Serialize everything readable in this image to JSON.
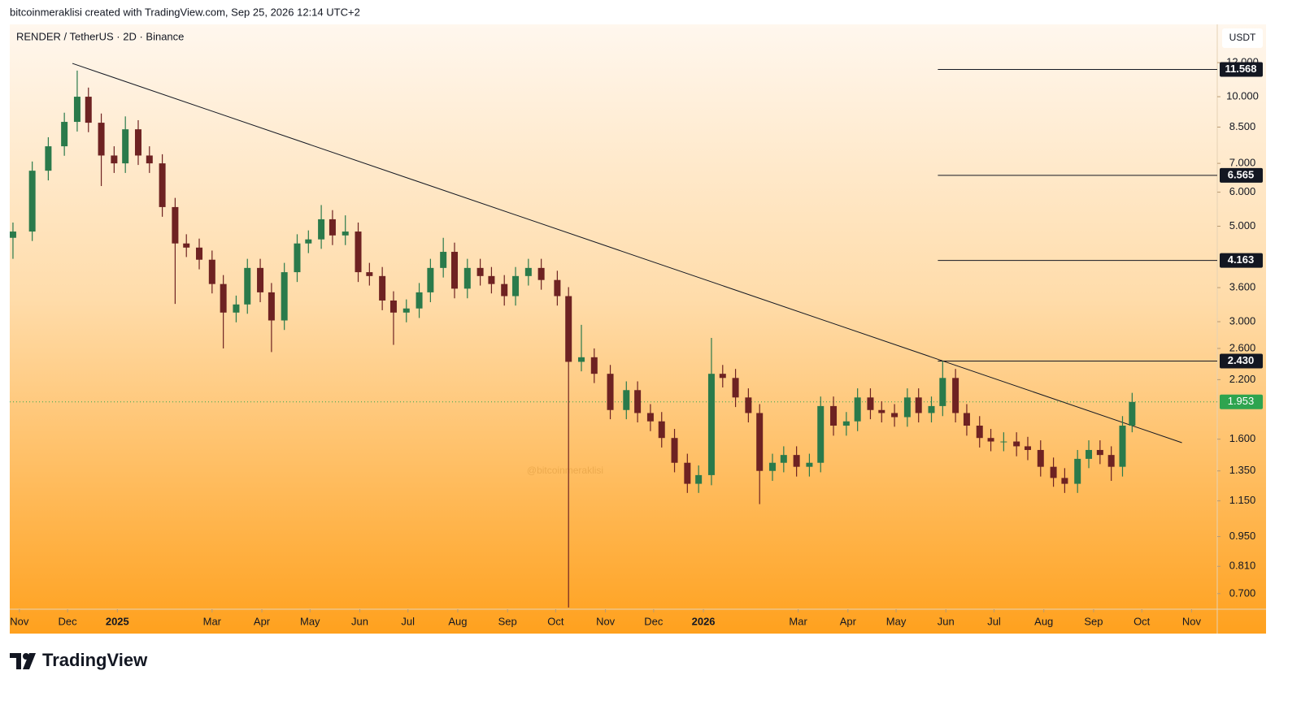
{
  "chart_data": {
    "type": "candlestick",
    "attribution": "bitcoinmeraklisi created with TradingView.com, Sep 25, 2026 12:14 UTC+2",
    "title": "RENDER / TetherUS · 2D · Binance",
    "y_axis_label": "USDT",
    "watermark": "@bitcoinmeraklisi",
    "brand": "TradingView",
    "log_scale": true,
    "up_color": "#2a7a4b",
    "down_color": "#6e2222",
    "xlim": [
      -6,
      746
    ],
    "ylim": [
      0.644,
      14.6
    ],
    "xticks": [
      {
        "value": 0,
        "label": "Nov"
      },
      {
        "value": 30,
        "label": "Dec"
      },
      {
        "value": 61,
        "label": "2025"
      },
      {
        "value": 120,
        "label": "Mar"
      },
      {
        "value": 151,
        "label": "Apr"
      },
      {
        "value": 181,
        "label": "May"
      },
      {
        "value": 212,
        "label": "Jun"
      },
      {
        "value": 242,
        "label": "Jul"
      },
      {
        "value": 273,
        "label": "Aug"
      },
      {
        "value": 304,
        "label": "Sep"
      },
      {
        "value": 334,
        "label": "Oct"
      },
      {
        "value": 365,
        "label": "Nov"
      },
      {
        "value": 395,
        "label": "Dec"
      },
      {
        "value": 426,
        "label": "2026"
      },
      {
        "value": 485,
        "label": "Mar"
      },
      {
        "value": 516,
        "label": "Apr"
      },
      {
        "value": 546,
        "label": "May"
      },
      {
        "value": 577,
        "label": "Jun"
      },
      {
        "value": 607,
        "label": "Jul"
      },
      {
        "value": 638,
        "label": "Aug"
      },
      {
        "value": 669,
        "label": "Sep"
      },
      {
        "value": 699,
        "label": "Oct"
      },
      {
        "value": 730,
        "label": "Nov"
      }
    ],
    "yticks": [
      {
        "value": 12,
        "label": "12.000"
      },
      {
        "value": 10,
        "label": "10.000"
      },
      {
        "value": 8.5,
        "label": "8.500"
      },
      {
        "value": 7,
        "label": "7.000"
      },
      {
        "value": 6,
        "label": "6.000"
      },
      {
        "value": 5,
        "label": "5.000"
      },
      {
        "value": 3.6,
        "label": "3.600"
      },
      {
        "value": 3,
        "label": "3.000"
      },
      {
        "value": 2.6,
        "label": "2.600"
      },
      {
        "value": 2.2,
        "label": "2.200"
      },
      {
        "value": 1.6,
        "label": "1.600"
      },
      {
        "value": 1.35,
        "label": "1.350"
      },
      {
        "value": 1.15,
        "label": "1.150"
      },
      {
        "value": 0.95,
        "label": "0.950"
      },
      {
        "value": 0.81,
        "label": "0.810"
      },
      {
        "value": 0.7,
        "label": "0.700"
      }
    ],
    "candles": {
      "x": [
        -4,
        8,
        18,
        28,
        36,
        43,
        51,
        59,
        66,
        74,
        81,
        89,
        97,
        104,
        112,
        120,
        127,
        135,
        142,
        150,
        157,
        165,
        173,
        180,
        188,
        195,
        203,
        211,
        218,
        226,
        233,
        241,
        249,
        256,
        264,
        271,
        279,
        287,
        294,
        302,
        309,
        317,
        325,
        335,
        342,
        350,
        358,
        368,
        378,
        385,
        393,
        400,
        408,
        416,
        423,
        431,
        438,
        446,
        454,
        461,
        469,
        476,
        484,
        492,
        499,
        507,
        515,
        522,
        530,
        537,
        545,
        553,
        560,
        568,
        575,
        583,
        590,
        598,
        605,
        613,
        621,
        628,
        636,
        644,
        651,
        659,
        666,
        673,
        680,
        687,
        693
      ],
      "open": [
        4.7,
        4.86,
        6.73,
        7.67,
        8.74,
        10.0,
        8.7,
        7.3,
        7.0,
        8.4,
        7.3,
        7.0,
        5.54,
        4.56,
        4.46,
        4.18,
        3.67,
        3.15,
        3.29,
        4.0,
        3.51,
        3.02,
        3.91,
        4.56,
        4.66,
        5.19,
        4.76,
        4.86,
        3.91,
        3.83,
        3.36,
        3.15,
        3.22,
        3.51,
        4.0,
        4.36,
        3.58,
        4.0,
        3.83,
        3.67,
        3.44,
        3.83,
        4.0,
        3.75,
        3.44,
        2.42,
        2.48,
        2.27,
        1.87,
        2.08,
        1.84,
        1.76,
        1.61,
        1.41,
        1.26,
        1.32,
        2.27,
        2.22,
        2.0,
        1.84,
        1.35,
        1.41,
        1.47,
        1.38,
        1.41,
        1.91,
        1.72,
        1.76,
        2.0,
        1.87,
        1.84,
        1.8,
        2.0,
        1.84,
        1.91,
        2.22,
        1.84,
        1.72,
        1.61,
        1.58,
        1.58,
        1.54,
        1.51,
        1.38,
        1.3,
        1.26,
        1.44,
        1.51,
        1.47,
        1.38,
        1.72
      ],
      "high": [
        5.1,
        7.07,
        8.05,
        9.18,
        11.5,
        10.5,
        9.14,
        7.67,
        9.0,
        8.82,
        7.67,
        7.35,
        5.82,
        4.79,
        4.68,
        4.39,
        3.85,
        3.45,
        4.2,
        4.2,
        3.69,
        4.11,
        4.79,
        4.89,
        5.6,
        5.45,
        5.3,
        5.1,
        4.11,
        4.02,
        3.53,
        3.38,
        3.69,
        4.2,
        4.7,
        4.58,
        4.2,
        4.2,
        4.02,
        3.85,
        4.02,
        4.2,
        4.2,
        3.94,
        3.61,
        2.95,
        2.6,
        2.38,
        2.18,
        2.18,
        1.93,
        1.85,
        1.69,
        1.48,
        1.39,
        2.75,
        2.38,
        2.33,
        2.1,
        1.93,
        1.48,
        1.54,
        1.54,
        1.48,
        2.01,
        2.01,
        1.85,
        2.1,
        2.1,
        1.96,
        1.93,
        2.1,
        2.1,
        2.01,
        2.43,
        2.33,
        1.93,
        1.81,
        1.69,
        1.66,
        1.66,
        1.62,
        1.59,
        1.45,
        1.37,
        1.51,
        1.59,
        1.59,
        1.54,
        1.81,
        2.05
      ],
      "low": [
        4.2,
        4.62,
        6.39,
        7.29,
        8.3,
        8.27,
        6.2,
        6.65,
        6.65,
        6.94,
        6.65,
        5.26,
        3.3,
        4.24,
        3.97,
        3.49,
        2.6,
        2.99,
        3.13,
        3.33,
        2.55,
        2.87,
        3.71,
        4.33,
        4.43,
        4.52,
        4.52,
        3.71,
        3.64,
        3.19,
        2.65,
        2.99,
        3.06,
        3.33,
        3.8,
        3.4,
        3.4,
        3.64,
        3.49,
        3.27,
        3.27,
        3.64,
        3.56,
        3.27,
        0.65,
        2.3,
        2.16,
        1.78,
        1.78,
        1.75,
        1.67,
        1.53,
        1.34,
        1.2,
        1.2,
        1.25,
        2.11,
        1.9,
        1.75,
        1.13,
        1.28,
        1.34,
        1.31,
        1.31,
        1.34,
        1.63,
        1.63,
        1.67,
        1.78,
        1.75,
        1.71,
        1.71,
        1.75,
        1.75,
        1.81,
        1.75,
        1.63,
        1.53,
        1.5,
        1.5,
        1.46,
        1.43,
        1.31,
        1.24,
        1.2,
        1.2,
        1.37,
        1.4,
        1.28,
        1.31,
        1.66
      ],
      "close": [
        4.86,
        6.73,
        7.67,
        8.74,
        10.0,
        8.7,
        7.3,
        7.0,
        8.4,
        7.3,
        7.0,
        5.54,
        4.56,
        4.46,
        4.18,
        3.67,
        3.15,
        3.29,
        4.0,
        3.51,
        3.02,
        3.91,
        4.56,
        4.66,
        5.19,
        4.76,
        4.86,
        3.91,
        3.83,
        3.36,
        3.15,
        3.22,
        3.51,
        4.0,
        4.36,
        3.58,
        4.0,
        3.83,
        3.67,
        3.44,
        3.83,
        4.0,
        3.75,
        3.44,
        2.42,
        2.48,
        2.27,
        1.87,
        2.08,
        1.84,
        1.76,
        1.61,
        1.41,
        1.26,
        1.32,
        2.27,
        2.22,
        2.0,
        1.84,
        1.35,
        1.41,
        1.47,
        1.38,
        1.41,
        1.91,
        1.72,
        1.76,
        2.0,
        1.87,
        1.84,
        1.8,
        2.0,
        1.84,
        1.91,
        2.22,
        1.84,
        1.72,
        1.61,
        1.58,
        1.58,
        1.54,
        1.51,
        1.38,
        1.3,
        1.26,
        1.44,
        1.51,
        1.47,
        1.38,
        1.72,
        1.953
      ]
    },
    "trendline": {
      "x": [
        33,
        724
      ],
      "y": [
        11.95,
        1.57
      ]
    },
    "level_start": 572,
    "levels": [
      11.568,
      6.565,
      4.163,
      {
        "value": 2.43,
        "label": "2.430"
      }
    ],
    "last_price": 1.953,
    "last_price_color": "#2ea44f"
  }
}
